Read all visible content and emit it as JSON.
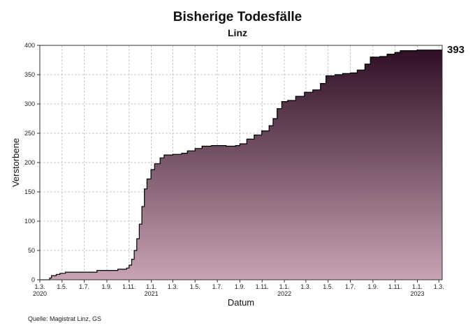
{
  "chart_data": {
    "type": "area",
    "title": "Bisherige Todesfälle",
    "subtitle": "Linz",
    "xlabel": "Datum",
    "ylabel": "Verstorbene",
    "source": "Quelle: Magistrat Linz, GS",
    "end_value_label": "393",
    "ylim": [
      0,
      400
    ],
    "xlim": [
      "2020-03-01",
      "2023-03-10"
    ],
    "y_ticks": [
      0,
      50,
      100,
      150,
      200,
      250,
      300,
      350,
      400
    ],
    "x_ticks": [
      {
        "date": "2020-03-01",
        "label": "1.3.",
        "year": "2020"
      },
      {
        "date": "2020-05-01",
        "label": "1.5.",
        "year": ""
      },
      {
        "date": "2020-07-01",
        "label": "1.7.",
        "year": ""
      },
      {
        "date": "2020-09-01",
        "label": "1.9.",
        "year": ""
      },
      {
        "date": "2020-11-01",
        "label": "1.11.",
        "year": ""
      },
      {
        "date": "2021-01-01",
        "label": "1.1.",
        "year": "2021"
      },
      {
        "date": "2021-03-01",
        "label": "1.3.",
        "year": ""
      },
      {
        "date": "2021-05-01",
        "label": "1.5.",
        "year": ""
      },
      {
        "date": "2021-07-01",
        "label": "1.7.",
        "year": ""
      },
      {
        "date": "2021-09-01",
        "label": "1.9.",
        "year": ""
      },
      {
        "date": "2021-11-01",
        "label": "1.11.",
        "year": ""
      },
      {
        "date": "2022-01-01",
        "label": "1.1.",
        "year": "2022"
      },
      {
        "date": "2022-03-01",
        "label": "1.3.",
        "year": ""
      },
      {
        "date": "2022-05-01",
        "label": "1.5.",
        "year": ""
      },
      {
        "date": "2022-07-01",
        "label": "1.7.",
        "year": ""
      },
      {
        "date": "2022-09-01",
        "label": "1.9.",
        "year": ""
      },
      {
        "date": "2022-11-01",
        "label": "1.11.",
        "year": ""
      },
      {
        "date": "2023-01-01",
        "label": "1.1.",
        "year": "2023"
      },
      {
        "date": "2023-03-01",
        "label": "1.3.",
        "year": ""
      }
    ],
    "grid": true,
    "colors": {
      "fill_top": "#2f0f26",
      "fill_bottom": "#c9a3b4",
      "line": "#000000",
      "grid": "#b8b8b8"
    },
    "points": [
      [
        "2020-03-01",
        0
      ],
      [
        "2020-03-25",
        0
      ],
      [
        "2020-03-28",
        3
      ],
      [
        "2020-04-02",
        7
      ],
      [
        "2020-04-15",
        9
      ],
      [
        "2020-04-25",
        11
      ],
      [
        "2020-05-10",
        13
      ],
      [
        "2020-06-15",
        13
      ],
      [
        "2020-07-20",
        13
      ],
      [
        "2020-08-05",
        16
      ],
      [
        "2020-09-15",
        16
      ],
      [
        "2020-10-01",
        18
      ],
      [
        "2020-10-25",
        20
      ],
      [
        "2020-11-01",
        25
      ],
      [
        "2020-11-08",
        35
      ],
      [
        "2020-11-15",
        50
      ],
      [
        "2020-11-22",
        70
      ],
      [
        "2020-11-29",
        95
      ],
      [
        "2020-12-06",
        125
      ],
      [
        "2020-12-13",
        155
      ],
      [
        "2020-12-20",
        172
      ],
      [
        "2020-12-31",
        188
      ],
      [
        "2021-01-10",
        198
      ],
      [
        "2021-01-25",
        208
      ],
      [
        "2021-02-05",
        213
      ],
      [
        "2021-03-01",
        214
      ],
      [
        "2021-03-25",
        216
      ],
      [
        "2021-04-10",
        220
      ],
      [
        "2021-05-01",
        224
      ],
      [
        "2021-05-20",
        228
      ],
      [
        "2021-06-15",
        229
      ],
      [
        "2021-07-10",
        229
      ],
      [
        "2021-07-25",
        228
      ],
      [
        "2021-08-20",
        229
      ],
      [
        "2021-09-01",
        232
      ],
      [
        "2021-09-20",
        240
      ],
      [
        "2021-10-10",
        247
      ],
      [
        "2021-10-31",
        254
      ],
      [
        "2021-11-20",
        263
      ],
      [
        "2021-12-01",
        275
      ],
      [
        "2021-12-12",
        292
      ],
      [
        "2021-12-25",
        304
      ],
      [
        "2022-01-10",
        306
      ],
      [
        "2022-02-01",
        313
      ],
      [
        "2022-02-25",
        320
      ],
      [
        "2022-03-20",
        324
      ],
      [
        "2022-04-10",
        335
      ],
      [
        "2022-04-25",
        348
      ],
      [
        "2022-05-20",
        350
      ],
      [
        "2022-06-10",
        352
      ],
      [
        "2022-07-01",
        353
      ],
      [
        "2022-07-20",
        358
      ],
      [
        "2022-08-10",
        368
      ],
      [
        "2022-08-25",
        380
      ],
      [
        "2022-09-20",
        381
      ],
      [
        "2022-10-10",
        385
      ],
      [
        "2022-10-31",
        388
      ],
      [
        "2022-11-15",
        391
      ],
      [
        "2022-12-31",
        392
      ],
      [
        "2023-02-15",
        392
      ],
      [
        "2023-03-10",
        393
      ]
    ]
  }
}
